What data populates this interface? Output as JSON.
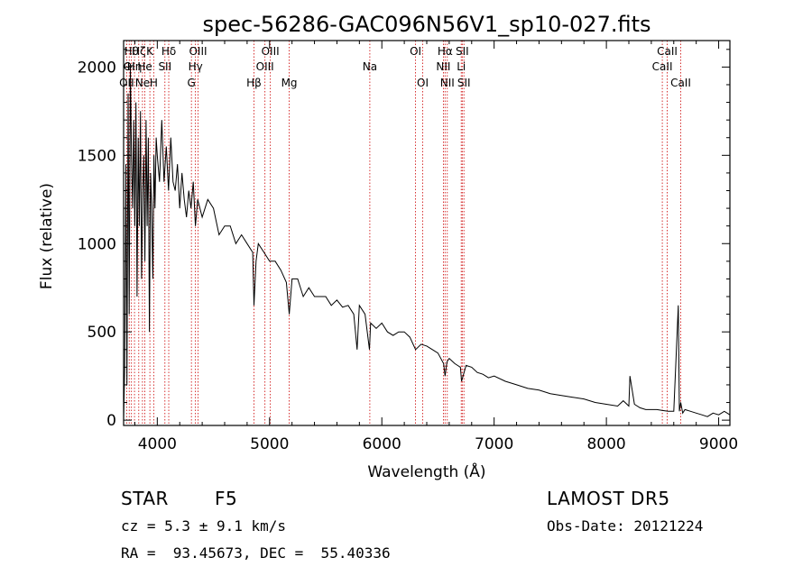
{
  "chart_data": {
    "type": "line",
    "title": "spec-56286-GAC096N56V1_sp10-027.fits",
    "xlabel": "Wavelength (Å)",
    "ylabel": "Flux (relative)",
    "xlim": [
      3700,
      9100
    ],
    "ylim": [
      -30,
      2150
    ],
    "x_ticks": [
      4000,
      5000,
      6000,
      7000,
      8000,
      9000
    ],
    "y_ticks": [
      0,
      500,
      1000,
      1500,
      2000
    ],
    "x_tick_labels": [
      "4000",
      "5000",
      "6000",
      "7000",
      "8000",
      "9000"
    ],
    "y_tick_labels": [
      "0",
      "500",
      "1000",
      "1500",
      "2000"
    ],
    "grid": false,
    "series": [
      {
        "color": "#000000",
        "x": [
          3700,
          3710,
          3720,
          3730,
          3740,
          3750,
          3760,
          3770,
          3780,
          3790,
          3800,
          3810,
          3820,
          3830,
          3840,
          3850,
          3860,
          3870,
          3880,
          3890,
          3900,
          3910,
          3920,
          3930,
          3940,
          3950,
          3960,
          3970,
          3980,
          3990,
          4000,
          4020,
          4040,
          4060,
          4080,
          4100,
          4120,
          4140,
          4160,
          4180,
          4200,
          4220,
          4240,
          4260,
          4280,
          4300,
          4320,
          4340,
          4360,
          4380,
          4400,
          4450,
          4500,
          4550,
          4600,
          4650,
          4700,
          4750,
          4800,
          4850,
          4861,
          4880,
          4900,
          4950,
          5000,
          5050,
          5100,
          5150,
          5175,
          5200,
          5250,
          5300,
          5350,
          5400,
          5450,
          5500,
          5550,
          5600,
          5650,
          5700,
          5750,
          5780,
          5800,
          5850,
          5890,
          5900,
          5950,
          6000,
          6050,
          6100,
          6150,
          6200,
          6250,
          6300,
          6350,
          6400,
          6450,
          6500,
          6550,
          6563,
          6580,
          6600,
          6650,
          6700,
          6710,
          6750,
          6800,
          6850,
          6900,
          6950,
          7000,
          7100,
          7200,
          7300,
          7400,
          7500,
          7600,
          7700,
          7800,
          7900,
          8000,
          8100,
          8150,
          8200,
          8210,
          8250,
          8300,
          8350,
          8400,
          8450,
          8500,
          8550,
          8600,
          8640,
          8650,
          8662,
          8680,
          8700,
          8750,
          8800,
          8850,
          8900,
          8950,
          9000,
          9050,
          9100
        ],
        "y": [
          0,
          300,
          1450,
          200,
          1850,
          600,
          2000,
          1500,
          1200,
          1700,
          1100,
          1800,
          700,
          1600,
          1100,
          1750,
          800,
          1300,
          1500,
          900,
          1700,
          1100,
          1600,
          500,
          1400,
          1200,
          800,
          1500,
          1200,
          1600,
          1500,
          1350,
          1700,
          1350,
          1550,
          1300,
          1600,
          1350,
          1300,
          1450,
          1200,
          1400,
          1250,
          1150,
          1300,
          1200,
          1350,
          1100,
          1250,
          1200,
          1150,
          1250,
          1200,
          1050,
          1100,
          1100,
          1000,
          1050,
          1000,
          950,
          650,
          900,
          1000,
          950,
          900,
          900,
          850,
          780,
          600,
          800,
          800,
          700,
          750,
          700,
          700,
          700,
          650,
          680,
          640,
          650,
          600,
          400,
          650,
          600,
          400,
          550,
          520,
          550,
          500,
          480,
          500,
          500,
          470,
          400,
          430,
          420,
          400,
          380,
          320,
          250,
          330,
          350,
          320,
          300,
          220,
          310,
          300,
          270,
          260,
          240,
          250,
          220,
          200,
          180,
          170,
          150,
          140,
          130,
          120,
          100,
          90,
          80,
          110,
          80,
          250,
          90,
          70,
          60,
          60,
          60,
          55,
          50,
          50,
          650,
          50,
          100,
          40,
          60,
          50,
          40,
          30,
          20,
          40,
          30,
          50,
          30
        ]
      }
    ],
    "line_labels": [
      {
        "x": 3727,
        "text": "OII",
        "row": 3
      },
      {
        "x": 3750,
        "text": "OI",
        "row": 2
      },
      {
        "x": 3770,
        "text": "Hθ",
        "row": 1
      },
      {
        "x": 3797,
        "text": "Hη",
        "row": 2
      },
      {
        "x": 3835,
        "text": "Hζ",
        "row": 1
      },
      {
        "x": 3868,
        "text": "Ne",
        "row": 3
      },
      {
        "x": 3889,
        "text": "He",
        "row": 2
      },
      {
        "x": 3934,
        "text": "K",
        "row": 1
      },
      {
        "x": 3968,
        "text": "H",
        "row": 3
      },
      {
        "x": 4068,
        "text": "SII",
        "row": 2
      },
      {
        "x": 4102,
        "text": "Hδ",
        "row": 1
      },
      {
        "x": 4304,
        "text": "G",
        "row": 3
      },
      {
        "x": 4340,
        "text": "Hγ",
        "row": 2
      },
      {
        "x": 4363,
        "text": "OIII",
        "row": 1
      },
      {
        "x": 4861,
        "text": "Hβ",
        "row": 3
      },
      {
        "x": 4959,
        "text": "OIII",
        "row": 2
      },
      {
        "x": 5007,
        "text": "OIII",
        "row": 1
      },
      {
        "x": 5175,
        "text": "Mg",
        "row": 3
      },
      {
        "x": 5893,
        "text": "Na",
        "row": 2
      },
      {
        "x": 6300,
        "text": "OI",
        "row": 1
      },
      {
        "x": 6364,
        "text": "OI",
        "row": 3
      },
      {
        "x": 6548,
        "text": "NII",
        "row": 2
      },
      {
        "x": 6563,
        "text": "Hα",
        "row": 1
      },
      {
        "x": 6583,
        "text": "NII",
        "row": 3
      },
      {
        "x": 6707,
        "text": "Li",
        "row": 2
      },
      {
        "x": 6716,
        "text": "SII",
        "row": 1
      },
      {
        "x": 6731,
        "text": "SII",
        "row": 3
      },
      {
        "x": 8498,
        "text": "CaII",
        "row": 2
      },
      {
        "x": 8542,
        "text": "CaII",
        "row": 1
      },
      {
        "x": 8662,
        "text": "CaII",
        "row": 3
      }
    ]
  },
  "info": {
    "object_class": "STAR",
    "subclass": "F5",
    "survey": "LAMOST DR5",
    "redshift": "cz = 5.3 ± 9.1 km/s",
    "obs_date": "Obs-Date: 20121224",
    "coords": "RA =  93.45673, DEC =  55.40336"
  },
  "colors": {
    "line_marker": "#cc0000",
    "spectrum": "#000000",
    "axes": "#000000"
  }
}
